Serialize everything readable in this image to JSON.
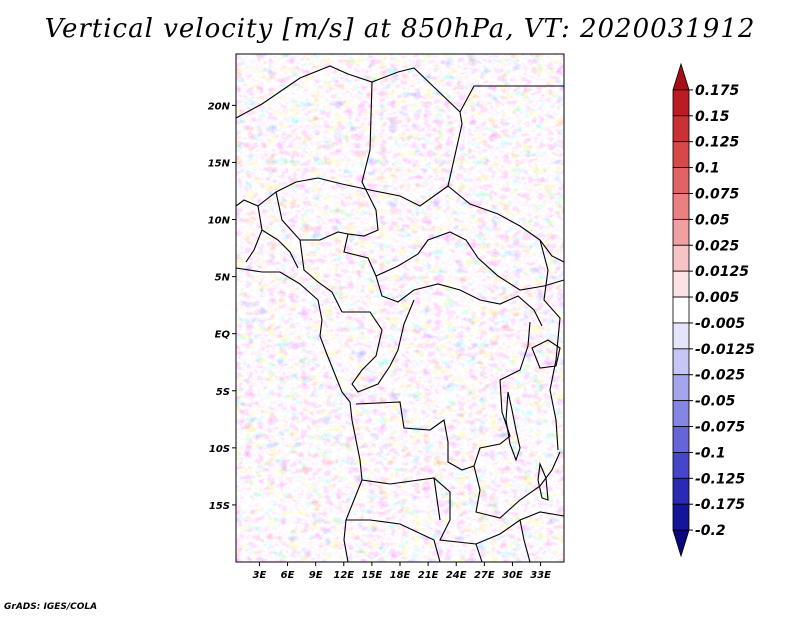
{
  "title": "Vertical velocity [m/s] at 850hPa, VT: 2020031912",
  "credit": "GrADS: IGES/COLA",
  "chart_data": {
    "type": "heatmap",
    "title": "Vertical velocity [m/s] at 850hPa, VT: 2020031912",
    "variable": "Vertical velocity",
    "units": "m/s",
    "level": "850hPa",
    "valid_time": "2020031912",
    "x_ticks": [
      "3E",
      "6E",
      "9E",
      "12E",
      "15E",
      "18E",
      "21E",
      "24E",
      "27E",
      "30E",
      "33E"
    ],
    "x_tick_values": [
      3,
      6,
      9,
      12,
      15,
      18,
      21,
      24,
      27,
      30,
      33
    ],
    "xlim": [
      0.5,
      35.5
    ],
    "y_ticks": [
      "20N",
      "15N",
      "10N",
      "5N",
      "EQ",
      "5S",
      "10S",
      "15S"
    ],
    "y_tick_values": [
      20,
      15,
      10,
      5,
      0,
      -5,
      -10,
      -15
    ],
    "ylim": [
      -20,
      24.5
    ],
    "colorbar": {
      "labels": [
        "0.175",
        "0.15",
        "0.125",
        "0.1",
        "0.075",
        "0.05",
        "0.025",
        "0.0125",
        "0.005",
        "-0.005",
        "-0.0125",
        "-0.025",
        "-0.05",
        "-0.075",
        "-0.1",
        "-0.125",
        "-0.175",
        "-0.2"
      ],
      "colors": [
        "#a50f15",
        "#bb1b22",
        "#cb3033",
        "#d94848",
        "#e26363",
        "#ea8080",
        "#f1a0a0",
        "#f7c4c4",
        "#fbe3e3",
        "#ffffff",
        "#e4e4fb",
        "#c6c6f5",
        "#a5a5ee",
        "#8585e4",
        "#6565d8",
        "#4646c8",
        "#2a2ab4",
        "#15159b",
        "#08087a"
      ]
    }
  }
}
